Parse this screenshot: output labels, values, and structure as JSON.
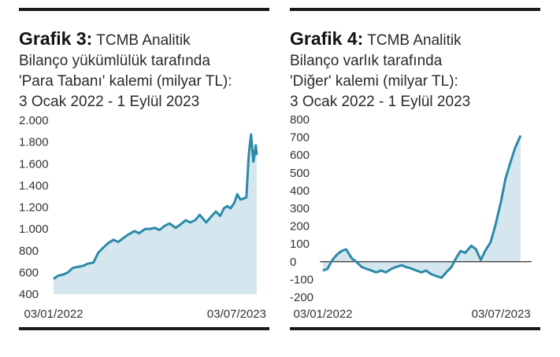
{
  "panels": [
    {
      "label": "Grafik 3:",
      "title_lines": [
        "TCMB Analitik",
        "Bilanço yükümlülük tarafında",
        "'Para Tabanı' kalemi (milyar TL):",
        "3 Ocak 2022 - 1 Eylül 2023"
      ]
    },
    {
      "label": "Grafik 4:",
      "title_lines": [
        "TCMB Analitik",
        "Bilanço varlık tarafında",
        "'Diğer' kalemi (milyar TL):",
        "3 Ocak 2022 - 1 Eylül 2023"
      ]
    }
  ],
  "colors": {
    "line": "#2b8aa8",
    "fill": "#d5e6ef",
    "rule": "#1a1a1a",
    "zero_line": "#1a1a1a"
  },
  "chart_data": [
    {
      "type": "area",
      "x_ticks": [
        "03/01/2022",
        "03/07/2023"
      ],
      "y_ticks": [
        "2.000",
        "1.800",
        "1.600",
        "1.400",
        "1.200",
        "1.000",
        "800",
        "600",
        "400"
      ],
      "ylim": [
        400,
        2000
      ],
      "x_range": [
        "2022-01-03",
        "2023-09-01"
      ],
      "x": [
        "2022-01-03",
        "2022-01-17",
        "2022-02-01",
        "2022-02-15",
        "2022-03-01",
        "2022-03-15",
        "2022-04-01",
        "2022-04-15",
        "2022-05-02",
        "2022-05-16",
        "2022-06-01",
        "2022-06-15",
        "2022-07-01",
        "2022-07-15",
        "2022-08-01",
        "2022-08-15",
        "2022-09-01",
        "2022-09-15",
        "2022-10-03",
        "2022-10-17",
        "2022-11-01",
        "2022-11-15",
        "2022-12-01",
        "2022-12-15",
        "2023-01-02",
        "2023-01-16",
        "2023-02-01",
        "2023-02-15",
        "2023-03-01",
        "2023-03-15",
        "2023-04-03",
        "2023-04-17",
        "2023-05-02",
        "2023-05-15",
        "2023-05-26",
        "2023-06-05",
        "2023-06-15",
        "2023-06-26",
        "2023-07-05",
        "2023-07-14",
        "2023-07-24",
        "2023-08-01",
        "2023-08-08",
        "2023-08-15",
        "2023-08-22",
        "2023-08-29",
        "2023-09-01"
      ],
      "y": [
        540,
        570,
        580,
        600,
        640,
        650,
        660,
        680,
        690,
        780,
        830,
        870,
        900,
        880,
        920,
        950,
        980,
        960,
        1000,
        1000,
        1010,
        990,
        1030,
        1050,
        1010,
        1040,
        1080,
        1060,
        1080,
        1130,
        1060,
        1110,
        1160,
        1120,
        1190,
        1210,
        1190,
        1240,
        1320,
        1270,
        1280,
        1290,
        1680,
        1870,
        1620,
        1770,
        1680
      ]
    },
    {
      "type": "area",
      "x_ticks": [
        "03/01/2022",
        "03/07/2023"
      ],
      "y_ticks": [
        "800",
        "700",
        "600",
        "500",
        "400",
        "300",
        "200",
        "100",
        "0",
        "-100",
        "-200"
      ],
      "ylim": [
        -200,
        800
      ],
      "x_range": [
        "2022-01-03",
        "2023-09-01"
      ],
      "x": [
        "2022-01-03",
        "2022-01-17",
        "2022-02-01",
        "2022-02-15",
        "2022-03-01",
        "2022-03-15",
        "2022-04-01",
        "2022-04-15",
        "2022-05-02",
        "2022-05-16",
        "2022-06-01",
        "2022-06-15",
        "2022-07-01",
        "2022-07-15",
        "2022-08-01",
        "2022-08-15",
        "2022-09-01",
        "2022-09-15",
        "2022-10-03",
        "2022-10-17",
        "2022-11-01",
        "2022-11-15",
        "2022-12-01",
        "2022-12-15",
        "2023-01-02",
        "2023-01-16",
        "2023-02-01",
        "2023-02-15",
        "2023-03-01",
        "2023-03-15",
        "2023-04-03",
        "2023-04-17",
        "2023-05-02",
        "2023-05-15",
        "2023-06-01",
        "2023-06-15",
        "2023-07-03",
        "2023-07-17",
        "2023-08-01",
        "2023-08-15",
        "2023-09-01"
      ],
      "y": [
        -50,
        -40,
        10,
        40,
        60,
        70,
        20,
        0,
        -30,
        -40,
        -50,
        -60,
        -50,
        -60,
        -40,
        -30,
        -20,
        -30,
        -40,
        -50,
        -60,
        -50,
        -70,
        -80,
        -90,
        -60,
        -30,
        20,
        60,
        50,
        90,
        70,
        10,
        60,
        110,
        200,
        340,
        470,
        560,
        640,
        710
      ]
    }
  ]
}
